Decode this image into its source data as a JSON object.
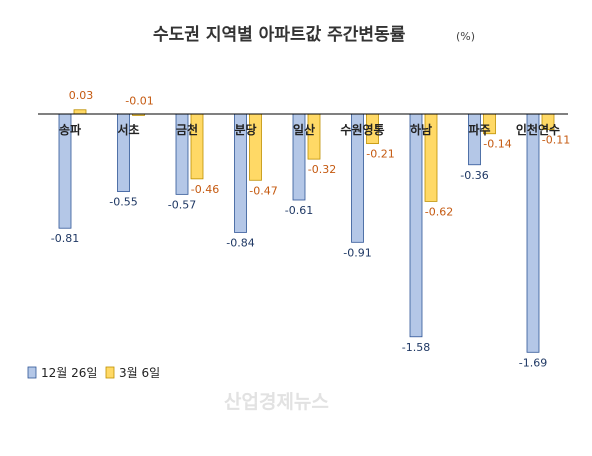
{
  "chart_data": {
    "type": "bar",
    "title": "수도권 지역별 아파트값 주간변동률",
    "unit": "(%)",
    "categories": [
      "송파",
      "서초",
      "금천",
      "분당",
      "일산",
      "수원영통",
      "하남",
      "파주",
      "인천연수"
    ],
    "series": [
      {
        "name": "12월 26일",
        "values": [
          -0.81,
          -0.55,
          -0.57,
          -0.84,
          -0.61,
          -0.91,
          -1.58,
          -0.36,
          -1.69
        ]
      },
      {
        "name": "3월 6일",
        "values": [
          0.03,
          -0.01,
          -0.46,
          -0.47,
          -0.32,
          -0.21,
          -0.62,
          -0.14,
          -0.11
        ]
      }
    ],
    "ylim": [
      -1.75,
      0.1
    ],
    "grid": false,
    "legend_position": "bottom-left",
    "watermark": "산업경제뉴스",
    "colors": {
      "series_a_fill": "#b4c7e7",
      "series_a_stroke": "#2f5597",
      "series_b_fill": "#ffd966",
      "series_b_stroke": "#bf9000",
      "series_a_label": "#1f3864",
      "series_b_label": "#c55a11"
    }
  }
}
